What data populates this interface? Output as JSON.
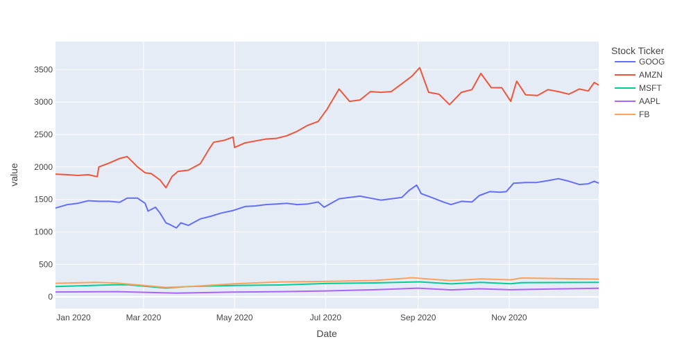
{
  "chart_data": {
    "type": "line",
    "xlabel": "Date",
    "ylabel": "value",
    "x_range": [
      "2020-01-02",
      "2020-12-31"
    ],
    "ylim": [
      -180,
      3930
    ],
    "grid": true,
    "legend_placement": "top-right",
    "legend_title": "Stock Ticker",
    "x_ticks": [
      {
        "label": "Jan 2020",
        "date": "2020-01-01"
      },
      {
        "label": "Mar 2020",
        "date": "2020-03-01"
      },
      {
        "label": "May 2020",
        "date": "2020-05-01"
      },
      {
        "label": "Jul 2020",
        "date": "2020-07-01"
      },
      {
        "label": "Sep 2020",
        "date": "2020-09-01"
      },
      {
        "label": "Nov 2020",
        "date": "2020-11-01"
      }
    ],
    "y_ticks": [
      0,
      500,
      1000,
      1500,
      2000,
      2500,
      3000,
      3500
    ],
    "series": [
      {
        "name": "GOOG",
        "color": "#636efa",
        "points": [
          [
            "2020-01-02",
            1367
          ],
          [
            "2020-01-10",
            1420
          ],
          [
            "2020-01-17",
            1440
          ],
          [
            "2020-01-24",
            1480
          ],
          [
            "2020-01-31",
            1470
          ],
          [
            "2020-02-07",
            1470
          ],
          [
            "2020-02-14",
            1455
          ],
          [
            "2020-02-19",
            1520
          ],
          [
            "2020-02-26",
            1520
          ],
          [
            "2020-03-02",
            1440
          ],
          [
            "2020-03-04",
            1320
          ],
          [
            "2020-03-09",
            1380
          ],
          [
            "2020-03-12",
            1290
          ],
          [
            "2020-03-16",
            1140
          ],
          [
            "2020-03-19",
            1110
          ],
          [
            "2020-03-23",
            1060
          ],
          [
            "2020-03-26",
            1140
          ],
          [
            "2020-03-31",
            1100
          ],
          [
            "2020-04-08",
            1200
          ],
          [
            "2020-04-15",
            1240
          ],
          [
            "2020-04-22",
            1290
          ],
          [
            "2020-04-30",
            1330
          ],
          [
            "2020-05-08",
            1390
          ],
          [
            "2020-05-15",
            1400
          ],
          [
            "2020-05-22",
            1420
          ],
          [
            "2020-05-29",
            1430
          ],
          [
            "2020-06-05",
            1440
          ],
          [
            "2020-06-12",
            1420
          ],
          [
            "2020-06-19",
            1430
          ],
          [
            "2020-06-26",
            1460
          ],
          [
            "2020-06-30",
            1380
          ],
          [
            "2020-07-10",
            1510
          ],
          [
            "2020-07-17",
            1530
          ],
          [
            "2020-07-24",
            1550
          ],
          [
            "2020-07-31",
            1520
          ],
          [
            "2020-08-07",
            1490
          ],
          [
            "2020-08-14",
            1510
          ],
          [
            "2020-08-21",
            1530
          ],
          [
            "2020-08-26",
            1640
          ],
          [
            "2020-08-31",
            1720
          ],
          [
            "2020-09-03",
            1590
          ],
          [
            "2020-09-10",
            1530
          ],
          [
            "2020-09-18",
            1460
          ],
          [
            "2020-09-23",
            1420
          ],
          [
            "2020-09-30",
            1470
          ],
          [
            "2020-10-07",
            1460
          ],
          [
            "2020-10-12",
            1560
          ],
          [
            "2020-10-19",
            1620
          ],
          [
            "2020-10-26",
            1610
          ],
          [
            "2020-10-30",
            1620
          ],
          [
            "2020-11-04",
            1750
          ],
          [
            "2020-11-12",
            1760
          ],
          [
            "2020-11-19",
            1760
          ],
          [
            "2020-11-27",
            1790
          ],
          [
            "2020-12-04",
            1820
          ],
          [
            "2020-12-11",
            1780
          ],
          [
            "2020-12-18",
            1730
          ],
          [
            "2020-12-24",
            1740
          ],
          [
            "2020-12-28",
            1780
          ],
          [
            "2020-12-31",
            1750
          ]
        ]
      },
      {
        "name": "AMZN",
        "color": "#ef553b",
        "points": [
          [
            "2020-01-02",
            1890
          ],
          [
            "2020-01-10",
            1880
          ],
          [
            "2020-01-17",
            1870
          ],
          [
            "2020-01-24",
            1880
          ],
          [
            "2020-01-30",
            1850
          ],
          [
            "2020-01-31",
            2000
          ],
          [
            "2020-02-07",
            2060
          ],
          [
            "2020-02-14",
            2130
          ],
          [
            "2020-02-19",
            2160
          ],
          [
            "2020-02-26",
            2000
          ],
          [
            "2020-03-02",
            1910
          ],
          [
            "2020-03-06",
            1900
          ],
          [
            "2020-03-12",
            1800
          ],
          [
            "2020-03-16",
            1680
          ],
          [
            "2020-03-20",
            1850
          ],
          [
            "2020-03-24",
            1930
          ],
          [
            "2020-03-31",
            1950
          ],
          [
            "2020-04-08",
            2050
          ],
          [
            "2020-04-14",
            2280
          ],
          [
            "2020-04-17",
            2380
          ],
          [
            "2020-04-24",
            2410
          ],
          [
            "2020-04-30",
            2460
          ],
          [
            "2020-05-01",
            2300
          ],
          [
            "2020-05-08",
            2370
          ],
          [
            "2020-05-15",
            2400
          ],
          [
            "2020-05-22",
            2430
          ],
          [
            "2020-05-29",
            2440
          ],
          [
            "2020-06-05",
            2480
          ],
          [
            "2020-06-12",
            2550
          ],
          [
            "2020-06-19",
            2640
          ],
          [
            "2020-06-26",
            2700
          ],
          [
            "2020-07-02",
            2890
          ],
          [
            "2020-07-10",
            3200
          ],
          [
            "2020-07-17",
            3010
          ],
          [
            "2020-07-24",
            3030
          ],
          [
            "2020-07-31",
            3160
          ],
          [
            "2020-08-07",
            3150
          ],
          [
            "2020-08-14",
            3160
          ],
          [
            "2020-08-21",
            3280
          ],
          [
            "2020-08-28",
            3400
          ],
          [
            "2020-09-02",
            3530
          ],
          [
            "2020-09-08",
            3150
          ],
          [
            "2020-09-15",
            3120
          ],
          [
            "2020-09-22",
            2960
          ],
          [
            "2020-09-30",
            3150
          ],
          [
            "2020-10-07",
            3190
          ],
          [
            "2020-10-13",
            3440
          ],
          [
            "2020-10-20",
            3220
          ],
          [
            "2020-10-27",
            3220
          ],
          [
            "2020-11-02",
            3010
          ],
          [
            "2020-11-06",
            3320
          ],
          [
            "2020-11-12",
            3110
          ],
          [
            "2020-11-20",
            3100
          ],
          [
            "2020-11-27",
            3190
          ],
          [
            "2020-12-04",
            3160
          ],
          [
            "2020-12-11",
            3120
          ],
          [
            "2020-12-18",
            3200
          ],
          [
            "2020-12-24",
            3170
          ],
          [
            "2020-12-28",
            3300
          ],
          [
            "2020-12-31",
            3260
          ]
        ]
      },
      {
        "name": "MSFT",
        "color": "#00cc96",
        "points": [
          [
            "2020-01-02",
            160
          ],
          [
            "2020-02-10",
            185
          ],
          [
            "2020-02-20",
            185
          ],
          [
            "2020-03-16",
            135
          ],
          [
            "2020-03-31",
            158
          ],
          [
            "2020-05-01",
            175
          ],
          [
            "2020-06-01",
            183
          ],
          [
            "2020-07-01",
            205
          ],
          [
            "2020-08-03",
            215
          ],
          [
            "2020-09-02",
            231
          ],
          [
            "2020-09-23",
            200
          ],
          [
            "2020-10-13",
            222
          ],
          [
            "2020-11-02",
            202
          ],
          [
            "2020-11-09",
            218
          ],
          [
            "2020-12-31",
            222
          ]
        ]
      },
      {
        "name": "AAPL",
        "color": "#ab63fa",
        "points": [
          [
            "2020-01-02",
            75
          ],
          [
            "2020-02-12",
            81
          ],
          [
            "2020-03-23",
            57
          ],
          [
            "2020-04-30",
            73
          ],
          [
            "2020-06-01",
            80
          ],
          [
            "2020-07-01",
            91
          ],
          [
            "2020-08-03",
            109
          ],
          [
            "2020-09-01",
            134
          ],
          [
            "2020-09-23",
            107
          ],
          [
            "2020-10-12",
            124
          ],
          [
            "2020-11-02",
            109
          ],
          [
            "2020-12-01",
            122
          ],
          [
            "2020-12-31",
            132
          ]
        ]
      },
      {
        "name": "FB",
        "color": "#ffa15a",
        "points": [
          [
            "2020-01-02",
            209
          ],
          [
            "2020-01-29",
            223
          ],
          [
            "2020-02-12",
            213
          ],
          [
            "2020-03-16",
            146
          ],
          [
            "2020-04-01",
            159
          ],
          [
            "2020-05-01",
            202
          ],
          [
            "2020-06-01",
            230
          ],
          [
            "2020-07-01",
            237
          ],
          [
            "2020-08-03",
            252
          ],
          [
            "2020-08-28",
            294
          ],
          [
            "2020-09-23",
            249
          ],
          [
            "2020-10-13",
            276
          ],
          [
            "2020-11-02",
            262
          ],
          [
            "2020-11-09",
            290
          ],
          [
            "2020-12-31",
            273
          ]
        ]
      }
    ]
  }
}
